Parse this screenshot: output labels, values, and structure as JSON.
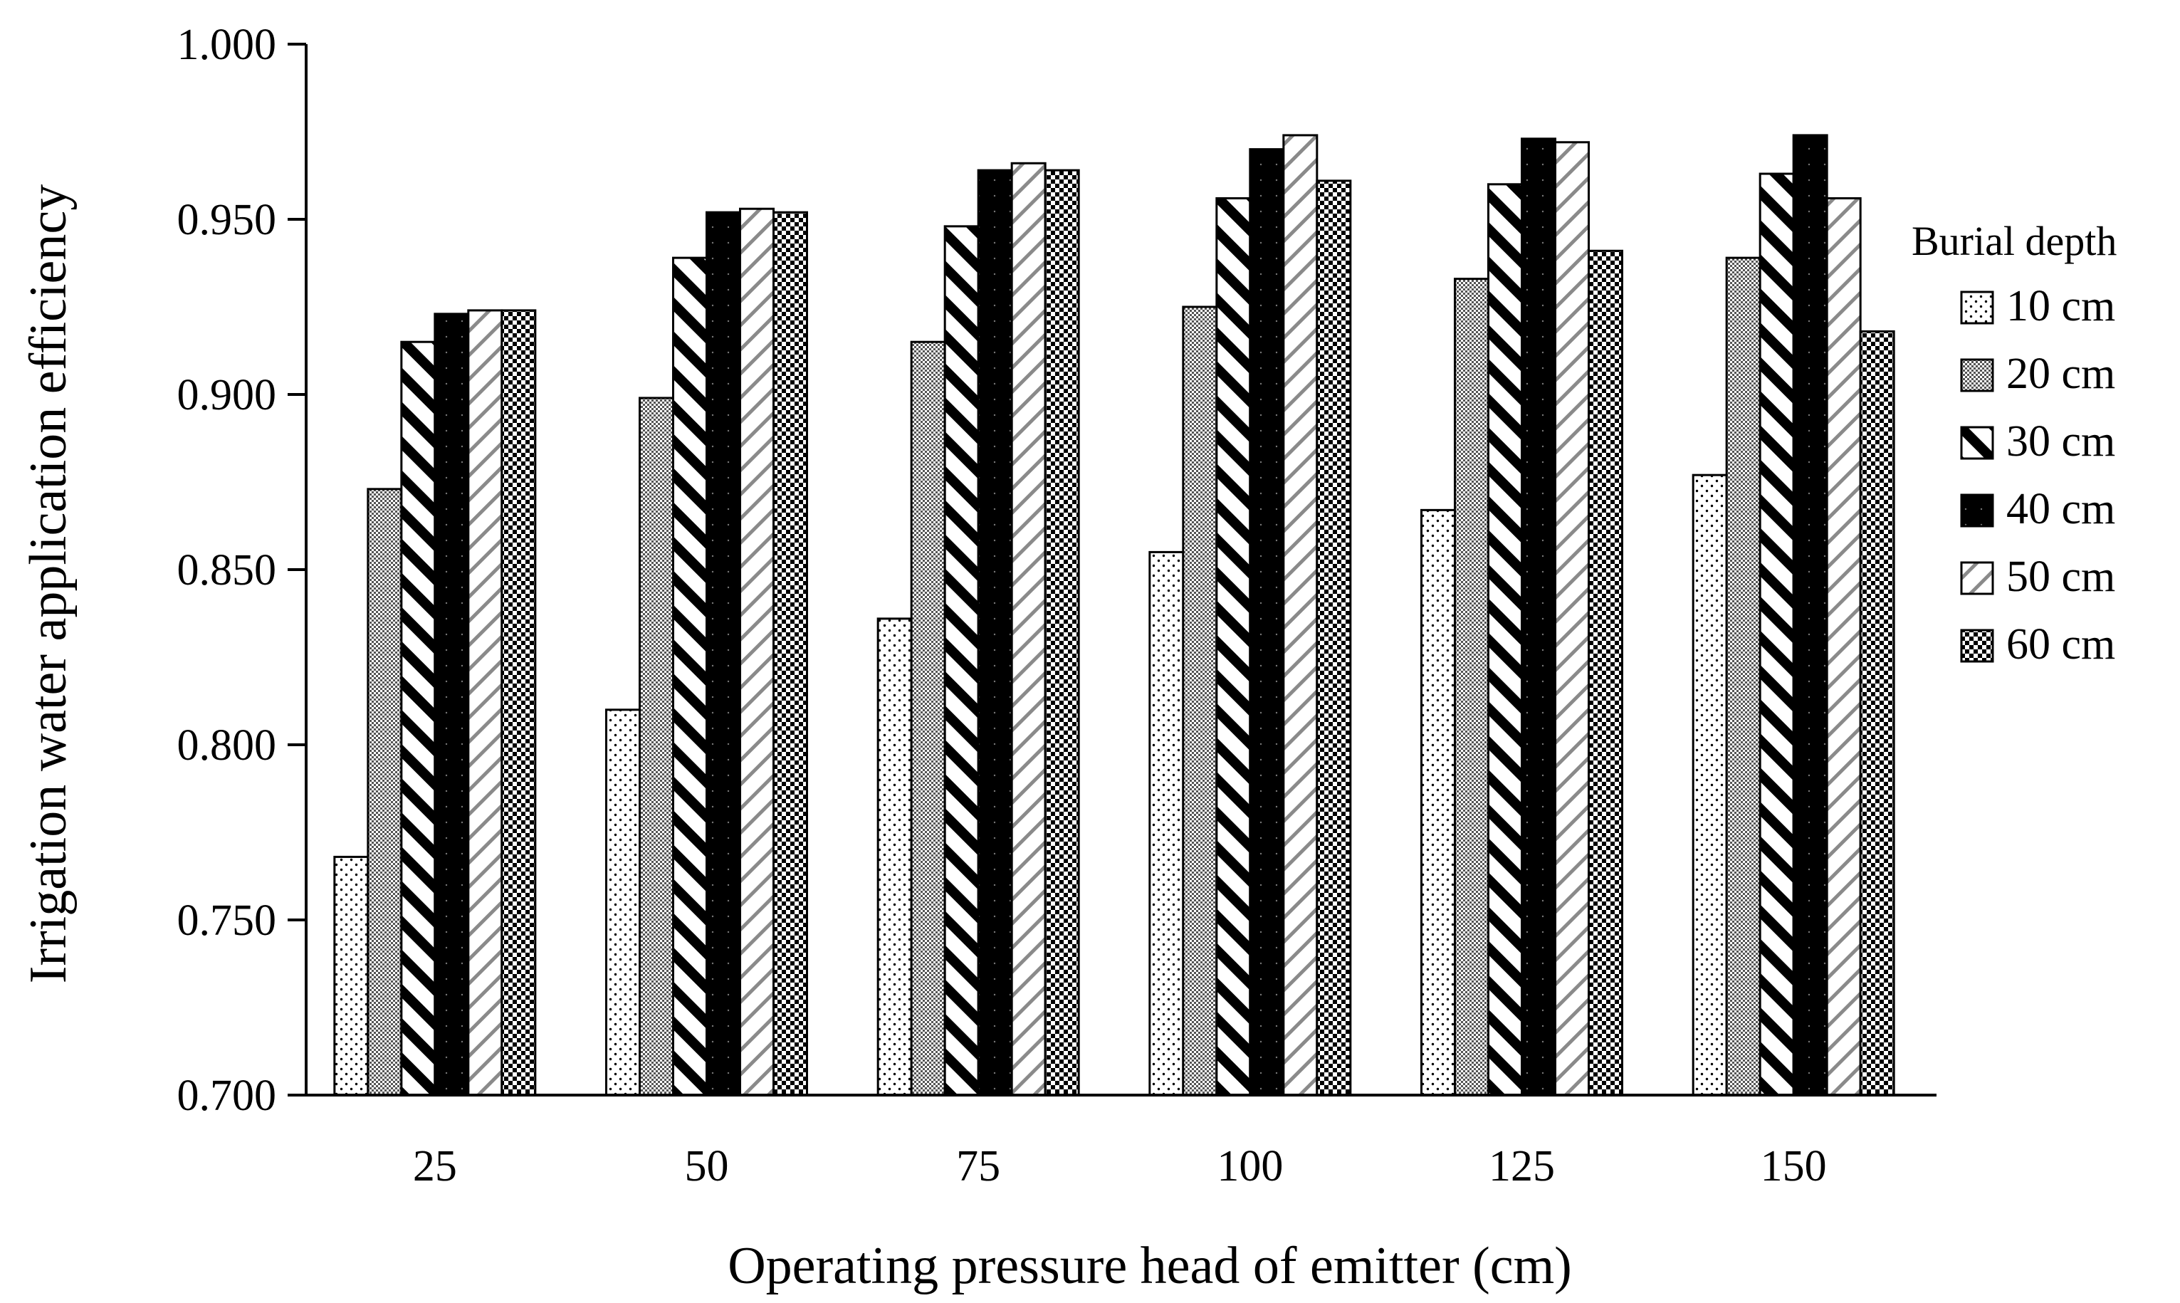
{
  "chart_data": {
    "type": "bar",
    "title": "",
    "xlabel": "Operating pressure head of emitter (cm)",
    "ylabel": "Irrigation water application efficiency",
    "categories": [
      "25",
      "50",
      "75",
      "100",
      "125",
      "150"
    ],
    "ylim": [
      0.7,
      1.0
    ],
    "yticks": [
      "0.700",
      "0.750",
      "0.800",
      "0.850",
      "0.900",
      "0.950",
      "1.000"
    ],
    "grid": false,
    "legend": {
      "title": "Burial depth",
      "placement": "right"
    },
    "series": [
      {
        "name": "10 cm",
        "values": [
          0.768,
          0.81,
          0.836,
          0.855,
          0.867,
          0.877
        ]
      },
      {
        "name": "20 cm",
        "values": [
          0.873,
          0.899,
          0.915,
          0.925,
          0.933,
          0.939
        ]
      },
      {
        "name": "30 cm",
        "values": [
          0.915,
          0.939,
          0.948,
          0.956,
          0.96,
          0.963
        ]
      },
      {
        "name": "40 cm",
        "values": [
          0.923,
          0.952,
          0.964,
          0.97,
          0.973,
          0.974
        ]
      },
      {
        "name": "50 cm",
        "values": [
          0.924,
          0.953,
          0.966,
          0.974,
          0.972,
          0.956
        ]
      },
      {
        "name": "60 cm",
        "values": [
          0.924,
          0.952,
          0.964,
          0.961,
          0.941,
          0.918
        ]
      }
    ],
    "patterns": [
      "dots-sparse",
      "checker-fine",
      "diagonal-thick",
      "solid-black",
      "diagonal-gray",
      "checker-bold"
    ]
  }
}
